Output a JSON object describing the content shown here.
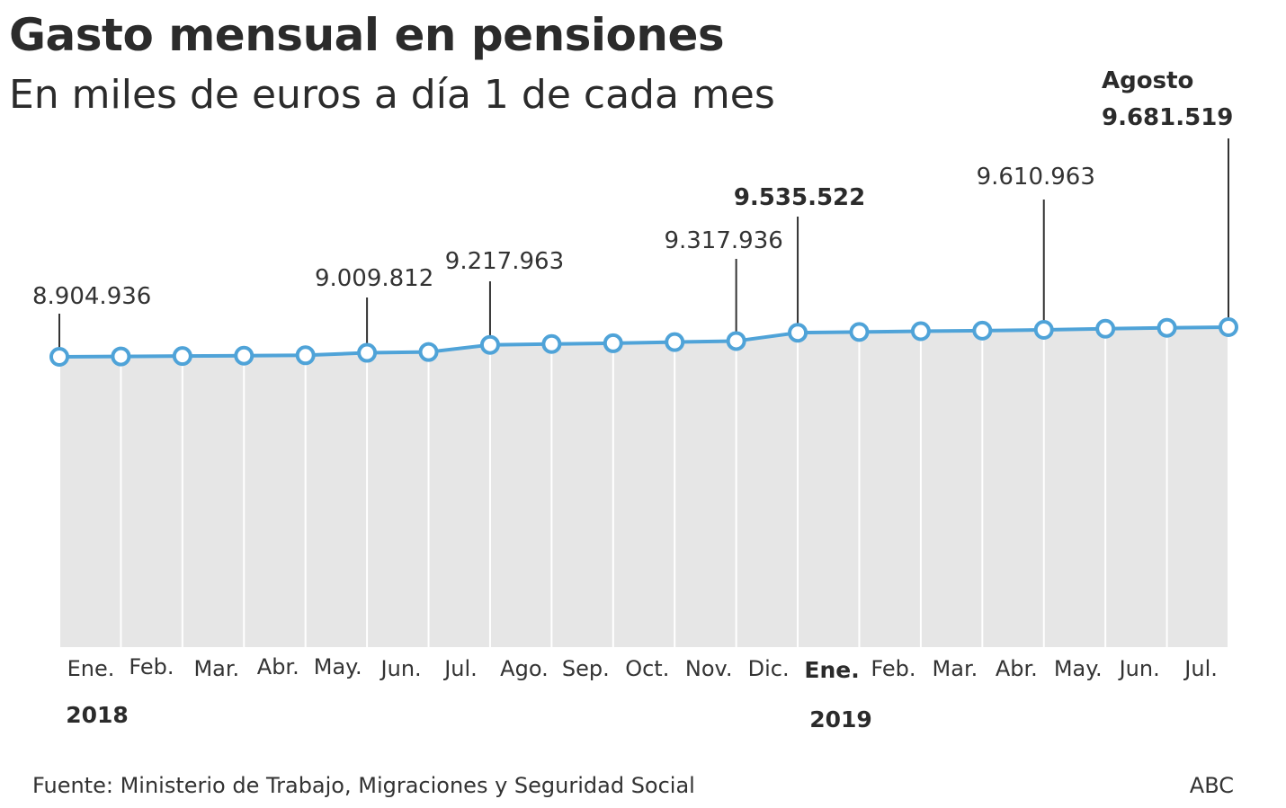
{
  "title": "Gasto mensual en pensiones",
  "subtitle": "En miles de euros a día 1 de cada mes",
  "footer": {
    "source": "Fuente: Ministerio de Trabajo, Migraciones y Seguridad Social",
    "brand": "ABC"
  },
  "colors": {
    "line": "#4fa3d8",
    "area": "#e6e6e6",
    "gridline": "#ffffff",
    "annotation": "#333333"
  },
  "chart_data": {
    "type": "area",
    "title": "Gasto mensual en pensiones",
    "subtitle": "En miles de euros a día 1 de cada mes",
    "xlabel": "",
    "ylabel": "",
    "categories": [
      "Ene.",
      "Feb.",
      "Mar.",
      "Abr.",
      "May.",
      "Jun.",
      "Jul.",
      "Ago.",
      "Sep.",
      "Oct.",
      "Nov.",
      "Dic.",
      "Ene.",
      "Feb.",
      "Mar.",
      "Abr.",
      "May.",
      "Jun.",
      "Jul.",
      "Ago."
    ],
    "category_labels": [
      "Ene.",
      "Feb.",
      "Mar.",
      "Abr.",
      "May.",
      "Jun.",
      "Jul.",
      "Ago.",
      "Sep.",
      "Oct.",
      "Nov.",
      "Dic.",
      "Ene.",
      "Feb.",
      "Mar.",
      "Abr.",
      "May.",
      "Jun.",
      "Jul."
    ],
    "year_labels": [
      {
        "label": "2018",
        "index": 0
      },
      {
        "label": "2019",
        "index": 12
      }
    ],
    "values": [
      8904936,
      8915000,
      8925000,
      8935000,
      8945000,
      9009812,
      9030000,
      9217963,
      9240000,
      9260000,
      9290000,
      9317936,
      9535522,
      9555000,
      9575000,
      9590000,
      9610963,
      9640000,
      9665000,
      9681519
    ],
    "ylim": [
      0,
      9681519
    ],
    "grid": true,
    "legend": "none",
    "annotations": [
      {
        "index": 0,
        "text": "8.904.936",
        "bold": false
      },
      {
        "index": 5,
        "text": "9.009.812",
        "bold": false
      },
      {
        "index": 7,
        "text": "9.217.963",
        "bold": false
      },
      {
        "index": 11,
        "text": "9.317.936",
        "bold": false
      },
      {
        "index": 12,
        "text": "9.535.522",
        "bold": true
      },
      {
        "index": 16,
        "text": "9.610.963",
        "bold": false
      },
      {
        "index": 19,
        "text": "Agosto",
        "text2": "9.681.519",
        "bold": true
      }
    ]
  }
}
